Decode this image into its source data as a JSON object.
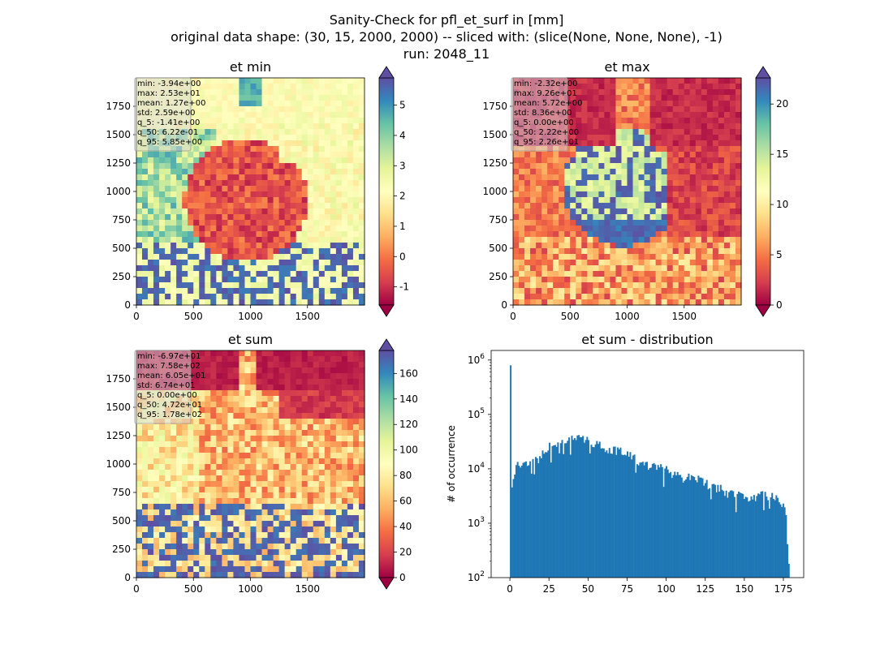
{
  "figure": {
    "suptitle": [
      "Sanity-Check for pfl_et_surf in [mm]",
      "original data shape: (30, 15, 2000, 2000) -- sliced with: (slice(None, None, None), -1)",
      "run: 2048_11"
    ]
  },
  "colormap": {
    "name": "Spectral",
    "stops": [
      "#9e0142",
      "#d53e4f",
      "#f46d43",
      "#fdae61",
      "#fee08b",
      "#ffffbf",
      "#e6f598",
      "#abdda4",
      "#66c2a5",
      "#3288bd",
      "#5e4fa2"
    ]
  },
  "chart_data": [
    {
      "type": "heatmap",
      "title": "et min",
      "xlim": [
        0,
        2000
      ],
      "ylim": [
        0,
        2000
      ],
      "xticks": [
        0,
        500,
        1000,
        1500
      ],
      "yticks": [
        0,
        250,
        500,
        750,
        1000,
        1250,
        1500,
        1750
      ],
      "colorbar": {
        "range": [
          -1.6,
          5.9
        ],
        "ticks": [
          -1,
          0,
          1,
          2,
          3,
          4,
          5
        ],
        "extend": "both"
      },
      "stats": [
        "min: -3.94e+00",
        "max: 2.53e+01",
        "mean: 1.27e+00",
        "std: 2.59e+00",
        "q_5: -1.41e+00",
        "q_50: 6.22e-01",
        "q_95: 5.85e+00"
      ],
      "stats_box": "top-left"
    },
    {
      "type": "heatmap",
      "title": "et max",
      "xlim": [
        0,
        2000
      ],
      "ylim": [
        0,
        2000
      ],
      "xticks": [
        0,
        500,
        1000,
        1500
      ],
      "yticks": [
        0,
        250,
        500,
        750,
        1000,
        1250,
        1500,
        1750
      ],
      "colorbar": {
        "range": [
          0,
          22.6
        ],
        "ticks": [
          0,
          5,
          10,
          15,
          20
        ],
        "extend": "both"
      },
      "stats": [
        "min: -2.32e+00",
        "max: 9.26e+01",
        "mean: 5.72e+00",
        "std: 8.36e+00",
        "q_5: 0.00e+00",
        "q_50: 2.22e+00",
        "q_95: 2.26e+01"
      ],
      "stats_box": "top-left"
    },
    {
      "type": "heatmap",
      "title": "et sum",
      "xlim": [
        0,
        2000
      ],
      "ylim": [
        0,
        2000
      ],
      "xticks": [
        0,
        500,
        1000,
        1500
      ],
      "yticks": [
        0,
        250,
        500,
        750,
        1000,
        1250,
        1500,
        1750
      ],
      "colorbar": {
        "range": [
          0,
          178
        ],
        "ticks": [
          0,
          20,
          40,
          60,
          80,
          100,
          120,
          140,
          160
        ],
        "extend": "both"
      },
      "stats": [
        "min: -6.97e+01",
        "max: 7.58e+02",
        "mean: 6.05e+01",
        "std: 6.74e+01",
        "q_5: 0.00e+00",
        "q_50: 4.72e+01",
        "q_95: 1.78e+02"
      ],
      "stats_box": "top-left"
    },
    {
      "type": "bar",
      "title": "et sum - distribution",
      "ylabel": "# of occurrence",
      "xlabel": "",
      "yscale": "log",
      "xlim": [
        -12,
        188
      ],
      "ylim": [
        100,
        1500000
      ],
      "xticks": [
        0,
        25,
        50,
        75,
        100,
        125,
        150,
        175
      ],
      "yticks": [
        100,
        1000,
        10000,
        100000,
        1000000
      ],
      "ytick_labels": [
        "10^2",
        "10^3",
        "10^4",
        "10^5",
        "10^6"
      ],
      "color": "#1f77b4",
      "bin_width": 0.89,
      "anchors": [
        [
          0,
          800000
        ],
        [
          0.9,
          3800
        ],
        [
          2,
          6000
        ],
        [
          4,
          12000
        ],
        [
          6,
          13000
        ],
        [
          10,
          13000
        ],
        [
          15,
          13500
        ],
        [
          20,
          17000
        ],
        [
          25,
          25000
        ],
        [
          30,
          30000
        ],
        [
          35,
          35000
        ],
        [
          40,
          38000
        ],
        [
          45,
          37000
        ],
        [
          50,
          33000
        ],
        [
          55,
          30000
        ],
        [
          60,
          25000
        ],
        [
          65,
          23000
        ],
        [
          70,
          21000
        ],
        [
          75,
          19000
        ],
        [
          80,
          15000
        ],
        [
          85,
          12000
        ],
        [
          90,
          11000
        ],
        [
          95,
          10500
        ],
        [
          100,
          9500
        ],
        [
          105,
          8000
        ],
        [
          110,
          6500
        ],
        [
          115,
          7000
        ],
        [
          120,
          7000
        ],
        [
          125,
          5500
        ],
        [
          130,
          4500
        ],
        [
          135,
          4500
        ],
        [
          140,
          3500
        ],
        [
          145,
          3500
        ],
        [
          150,
          3000
        ],
        [
          155,
          3000
        ],
        [
          160,
          3200
        ],
        [
          165,
          3300
        ],
        [
          170,
          3000
        ],
        [
          175,
          2200
        ],
        [
          177,
          1500
        ],
        [
          178,
          150
        ]
      ]
    }
  ]
}
